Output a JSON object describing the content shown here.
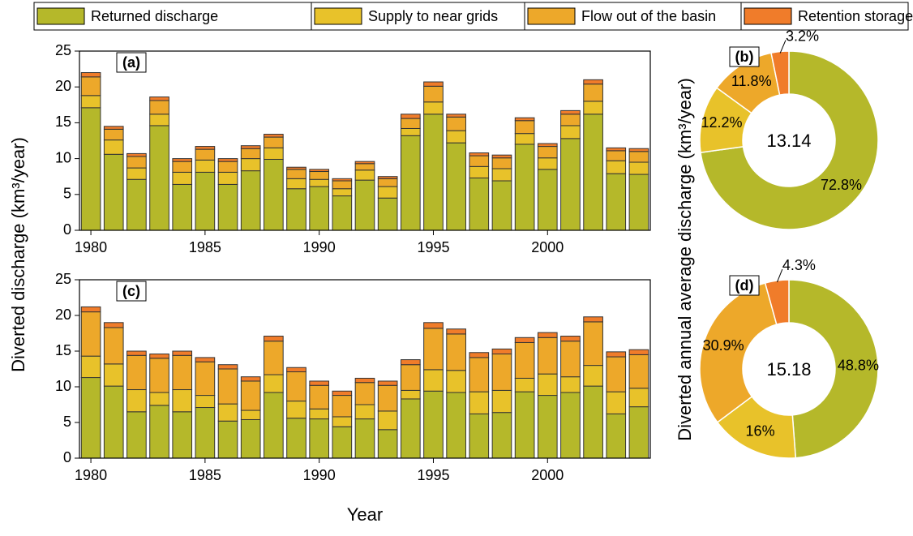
{
  "chart_data": [
    {
      "type": "bar",
      "stacked": true,
      "label": "(a)",
      "ylabel": "Diverted discharge (km³/year)",
      "x": [
        1980,
        1981,
        1982,
        1983,
        1984,
        1985,
        1986,
        1987,
        1988,
        1989,
        1990,
        1991,
        1992,
        1993,
        1994,
        1995,
        1996,
        1997,
        1998,
        1999,
        2000,
        2001,
        2002,
        2003,
        2004
      ],
      "xlim": [
        1979.5,
        2004.5
      ],
      "xticks": [
        1980,
        1985,
        1990,
        1995,
        2000
      ],
      "ylim": [
        0,
        25
      ],
      "yticks": [
        0,
        5,
        10,
        15,
        20,
        25
      ],
      "series": [
        {
          "name": "Returned discharge",
          "color": "#b5b82a",
          "values": [
            17.1,
            10.6,
            7.1,
            14.6,
            6.4,
            8.1,
            6.4,
            8.3,
            9.9,
            5.8,
            6.1,
            4.8,
            7.0,
            4.5,
            13.2,
            16.2,
            12.2,
            7.3,
            6.9,
            12.0,
            8.5,
            12.8,
            16.2,
            7.9,
            7.8
          ]
        },
        {
          "name": "Supply to near grids",
          "color": "#e8c22a",
          "values": [
            1.7,
            2.0,
            1.6,
            1.6,
            1.7,
            1.7,
            1.7,
            1.7,
            1.6,
            1.4,
            1.0,
            1.0,
            1.4,
            1.6,
            1.0,
            1.7,
            1.7,
            1.6,
            1.7,
            1.5,
            1.6,
            1.8,
            1.8,
            1.8,
            1.7
          ]
        },
        {
          "name": "Flow out of the basin",
          "color": "#eda82a",
          "values": [
            2.6,
            1.5,
            1.6,
            1.9,
            1.5,
            1.5,
            1.5,
            1.4,
            1.5,
            1.3,
            1.1,
            1.1,
            0.9,
            1.1,
            1.4,
            2.2,
            1.9,
            1.5,
            1.5,
            1.8,
            1.6,
            1.6,
            2.4,
            1.4,
            1.5
          ]
        },
        {
          "name": "Retention storage",
          "color": "#f07c2a",
          "values": [
            0.6,
            0.4,
            0.4,
            0.5,
            0.4,
            0.4,
            0.4,
            0.4,
            0.4,
            0.3,
            0.3,
            0.3,
            0.3,
            0.3,
            0.6,
            0.6,
            0.4,
            0.4,
            0.4,
            0.4,
            0.4,
            0.5,
            0.6,
            0.4,
            0.4
          ]
        }
      ]
    },
    {
      "type": "pie",
      "label": "(b)",
      "ylabel": "Diverted annual average discharge (km³/year)",
      "center_value": 13.14,
      "values": [
        72.8,
        12.2,
        11.8,
        3.2
      ],
      "value_labels": [
        "72.8%",
        "12.2%",
        "11.8%",
        "3.2%"
      ],
      "colors": [
        "#b5b82a",
        "#e8c22a",
        "#eda82a",
        "#f07c2a"
      ]
    },
    {
      "type": "bar",
      "stacked": true,
      "label": "(c)",
      "xlabel": "Year",
      "x": [
        1980,
        1981,
        1982,
        1983,
        1984,
        1985,
        1986,
        1987,
        1988,
        1989,
        1990,
        1991,
        1992,
        1993,
        1994,
        1995,
        1996,
        1997,
        1998,
        1999,
        2000,
        2001,
        2002,
        2003,
        2004
      ],
      "xlim": [
        1979.5,
        2004.5
      ],
      "xticks": [
        1980,
        1985,
        1990,
        1995,
        2000
      ],
      "ylim": [
        0,
        25
      ],
      "yticks": [
        0,
        5,
        10,
        15,
        20,
        25
      ],
      "series": [
        {
          "color": "#b5b82a",
          "values": [
            11.3,
            10.1,
            6.5,
            7.4,
            6.5,
            7.1,
            5.2,
            5.4,
            9.2,
            5.6,
            5.5,
            4.4,
            5.5,
            4.0,
            8.3,
            9.4,
            9.2,
            6.2,
            6.4,
            9.3,
            8.8,
            9.2,
            10.1,
            6.2,
            7.2
          ]
        },
        {
          "color": "#e8c22a",
          "values": [
            3.0,
            3.1,
            3.1,
            1.8,
            3.1,
            1.7,
            2.4,
            1.3,
            2.5,
            2.4,
            1.4,
            1.4,
            2.0,
            2.6,
            1.2,
            3.0,
            3.1,
            3.1,
            3.1,
            1.9,
            3.0,
            2.2,
            2.9,
            3.1,
            2.6
          ]
        },
        {
          "color": "#eda82a",
          "values": [
            6.2,
            5.1,
            4.8,
            4.8,
            4.8,
            4.7,
            4.9,
            4.1,
            4.7,
            4.1,
            3.3,
            3.0,
            3.1,
            3.6,
            3.6,
            5.8,
            5.1,
            4.8,
            5.1,
            5.0,
            5.1,
            5.0,
            6.1,
            4.9,
            4.7
          ]
        },
        {
          "color": "#f07c2a",
          "values": [
            0.7,
            0.7,
            0.6,
            0.6,
            0.6,
            0.6,
            0.6,
            0.6,
            0.7,
            0.6,
            0.6,
            0.6,
            0.6,
            0.6,
            0.7,
            0.8,
            0.7,
            0.7,
            0.7,
            0.7,
            0.7,
            0.7,
            0.7,
            0.7,
            0.7
          ]
        }
      ]
    },
    {
      "type": "pie",
      "label": "(d)",
      "center_value": 15.18,
      "values": [
        48.8,
        16,
        30.9,
        4.3
      ],
      "value_labels": [
        "48.8%",
        "16%",
        "30.9%",
        "4.3%"
      ],
      "colors": [
        "#b5b82a",
        "#e8c22a",
        "#eda82a",
        "#f07c2a"
      ]
    }
  ]
}
